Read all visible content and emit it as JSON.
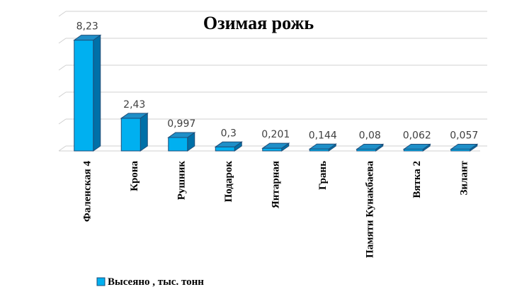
{
  "chart_data": {
    "type": "bar",
    "title": "Озимая рожь",
    "categories": [
      "Фаленская 4",
      "Крона",
      "Рушник",
      "Подарок",
      "Янтарная",
      "Грань",
      "Памяти Кунакбаева",
      "Вятка 2",
      "Зилант"
    ],
    "series": [
      {
        "name": "Высеяно , тыс. тонн",
        "values": [
          8.23,
          2.43,
          0.997,
          0.3,
          0.201,
          0.144,
          0.08,
          0.062,
          0.057
        ],
        "labels": [
          "8,23",
          "2,43",
          "0,997",
          "0,3",
          "0,201",
          "0,144",
          "0,08",
          "0,062",
          "0,057"
        ]
      }
    ],
    "ylim": [
      0,
      10
    ],
    "grid": true,
    "legend": "bottom-left",
    "colors": {
      "bar_front": "#00b0f0",
      "bar_side": "#0070a8",
      "bar_top": "#1e8fc8",
      "bar_stroke": "#1f4e79",
      "grid": "#d0d0d0"
    }
  }
}
